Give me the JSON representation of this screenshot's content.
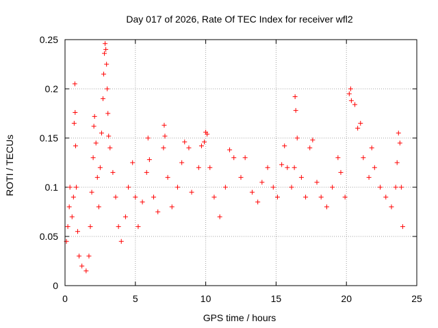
{
  "chart_data": {
    "type": "scatter",
    "title": "Day 017 of 2026, Rate Of TEC Index for receiver wfl2",
    "xlabel": "GPS time / hours",
    "ylabel": "ROTI / TECUs",
    "xlim": [
      0,
      25
    ],
    "ylim": [
      0,
      0.25
    ],
    "x_ticks": [
      0,
      5,
      10,
      15,
      20,
      25
    ],
    "x_tick_labels": [
      "0",
      "5",
      "10",
      "15",
      "20",
      "25"
    ],
    "y_ticks": [
      0,
      0.05,
      0.1,
      0.15,
      0.2,
      0.25
    ],
    "y_tick_labels": [
      "0",
      "0.05",
      "0.1",
      "0.15",
      "0.2",
      "0.25"
    ],
    "grid": true,
    "marker": "+",
    "color": "#ff0000",
    "series": [
      {
        "name": "wfl2",
        "points": [
          [
            0.1,
            0.045
          ],
          [
            0.2,
            0.06
          ],
          [
            0.3,
            0.08
          ],
          [
            0.35,
            0.1
          ],
          [
            0.5,
            0.07
          ],
          [
            0.6,
            0.09
          ],
          [
            0.65,
            0.165
          ],
          [
            0.7,
            0.205
          ],
          [
            0.72,
            0.176
          ],
          [
            0.75,
            0.142
          ],
          [
            0.8,
            0.1
          ],
          [
            0.9,
            0.055
          ],
          [
            1.0,
            0.03
          ],
          [
            1.2,
            0.02
          ],
          [
            1.5,
            0.015
          ],
          [
            1.7,
            0.03
          ],
          [
            1.8,
            0.06
          ],
          [
            1.9,
            0.095
          ],
          [
            2.0,
            0.13
          ],
          [
            2.05,
            0.162
          ],
          [
            2.1,
            0.172
          ],
          [
            2.2,
            0.145
          ],
          [
            2.3,
            0.11
          ],
          [
            2.4,
            0.08
          ],
          [
            2.5,
            0.12
          ],
          [
            2.6,
            0.155
          ],
          [
            2.7,
            0.19
          ],
          [
            2.75,
            0.215
          ],
          [
            2.8,
            0.236
          ],
          [
            2.85,
            0.246
          ],
          [
            2.9,
            0.24
          ],
          [
            2.95,
            0.225
          ],
          [
            3.0,
            0.2
          ],
          [
            3.05,
            0.175
          ],
          [
            3.1,
            0.152
          ],
          [
            3.2,
            0.14
          ],
          [
            3.4,
            0.115
          ],
          [
            3.6,
            0.09
          ],
          [
            3.8,
            0.06
          ],
          [
            4.0,
            0.045
          ],
          [
            4.3,
            0.07
          ],
          [
            4.5,
            0.1
          ],
          [
            4.8,
            0.125
          ],
          [
            5.0,
            0.09
          ],
          [
            5.2,
            0.06
          ],
          [
            5.5,
            0.085
          ],
          [
            5.8,
            0.115
          ],
          [
            5.9,
            0.15
          ],
          [
            6.0,
            0.128
          ],
          [
            6.3,
            0.09
          ],
          [
            6.6,
            0.075
          ],
          [
            7.0,
            0.14
          ],
          [
            7.05,
            0.163
          ],
          [
            7.1,
            0.152
          ],
          [
            7.3,
            0.11
          ],
          [
            7.6,
            0.08
          ],
          [
            8.0,
            0.1
          ],
          [
            8.3,
            0.125
          ],
          [
            8.5,
            0.146
          ],
          [
            8.8,
            0.14
          ],
          [
            9.0,
            0.095
          ],
          [
            9.5,
            0.12
          ],
          [
            9.7,
            0.142
          ],
          [
            9.9,
            0.146
          ],
          [
            10.0,
            0.156
          ],
          [
            10.1,
            0.154
          ],
          [
            10.3,
            0.12
          ],
          [
            10.6,
            0.09
          ],
          [
            11.0,
            0.07
          ],
          [
            11.4,
            0.1
          ],
          [
            11.7,
            0.138
          ],
          [
            12.0,
            0.13
          ],
          [
            12.5,
            0.11
          ],
          [
            12.8,
            0.13
          ],
          [
            13.3,
            0.095
          ],
          [
            13.7,
            0.085
          ],
          [
            14.0,
            0.105
          ],
          [
            14.4,
            0.12
          ],
          [
            14.8,
            0.1
          ],
          [
            15.1,
            0.09
          ],
          [
            15.4,
            0.123
          ],
          [
            15.6,
            0.142
          ],
          [
            15.8,
            0.12
          ],
          [
            16.1,
            0.1
          ],
          [
            16.3,
            0.12
          ],
          [
            16.35,
            0.192
          ],
          [
            16.4,
            0.178
          ],
          [
            16.5,
            0.15
          ],
          [
            16.8,
            0.11
          ],
          [
            17.1,
            0.09
          ],
          [
            17.4,
            0.14
          ],
          [
            17.6,
            0.148
          ],
          [
            17.9,
            0.105
          ],
          [
            18.2,
            0.09
          ],
          [
            18.6,
            0.08
          ],
          [
            19.0,
            0.1
          ],
          [
            19.4,
            0.13
          ],
          [
            19.6,
            0.115
          ],
          [
            19.9,
            0.09
          ],
          [
            20.2,
            0.195
          ],
          [
            20.3,
            0.2
          ],
          [
            20.35,
            0.188
          ],
          [
            20.6,
            0.184
          ],
          [
            20.8,
            0.16
          ],
          [
            21.0,
            0.165
          ],
          [
            21.2,
            0.13
          ],
          [
            21.6,
            0.11
          ],
          [
            21.8,
            0.14
          ],
          [
            22.0,
            0.12
          ],
          [
            22.4,
            0.1
          ],
          [
            22.8,
            0.09
          ],
          [
            23.2,
            0.08
          ],
          [
            23.5,
            0.1
          ],
          [
            23.6,
            0.125
          ],
          [
            23.7,
            0.155
          ],
          [
            23.8,
            0.145
          ],
          [
            23.9,
            0.1
          ],
          [
            24.0,
            0.06
          ]
        ]
      }
    ]
  }
}
